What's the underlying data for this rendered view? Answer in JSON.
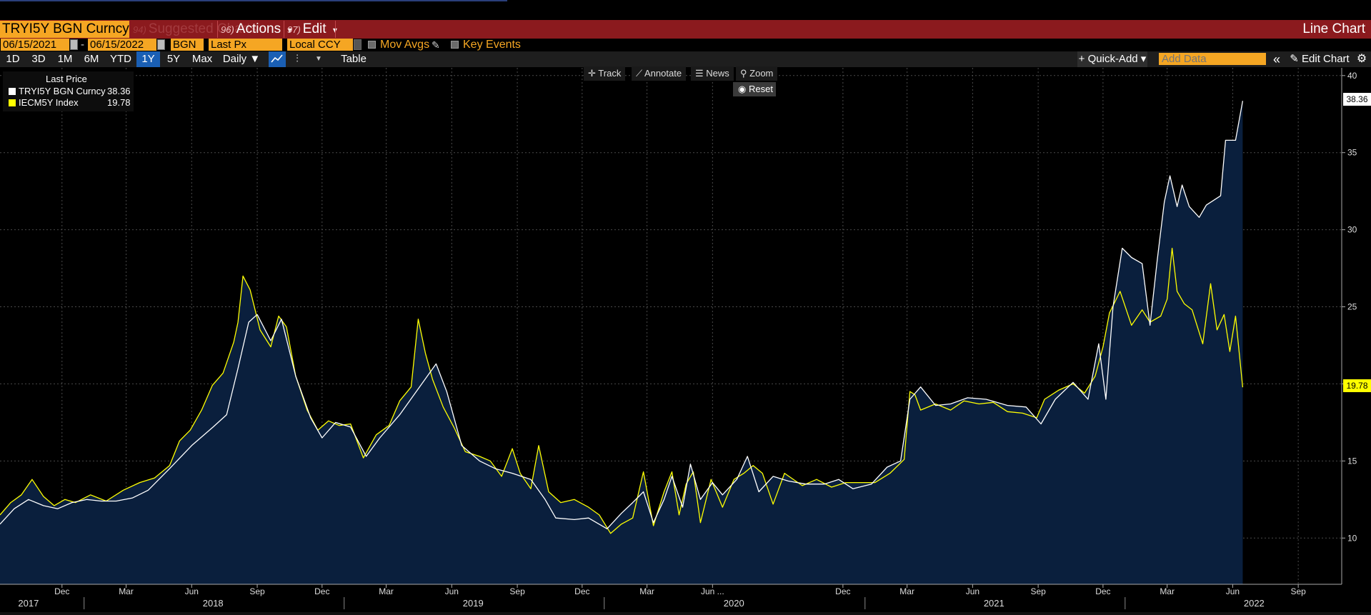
{
  "title_bar": {
    "ticker": "TRYI5Y BGN Curncy",
    "menus": [
      {
        "num": "94)",
        "label": "Suggested Charts"
      },
      {
        "num": "96)",
        "label": "Actions"
      },
      {
        "num": "97)",
        "label": "Edit"
      }
    ],
    "actions_arrow": "▾",
    "edit_arrow": "▾",
    "view_name": "Line Chart"
  },
  "settings_row": {
    "start_date": "06/15/2021",
    "date_separator": "-",
    "end_date": "06/15/2022",
    "source": "BGN",
    "field": "Last Px",
    "currency": "Local CCY",
    "mov_avgs": "Mov Avgs",
    "key_events": "Key Events"
  },
  "toolbar": {
    "ranges": [
      "1D",
      "3D",
      "1M",
      "6M",
      "YTD",
      "1Y",
      "5Y",
      "Max"
    ],
    "active_range": "1Y",
    "frequency": "Daily ▼",
    "table": "Table",
    "quick_add": "+ Quick-Add ▾",
    "add_data_placeholder": "Add Data",
    "collapse": "«",
    "edit_chart": "Edit Chart"
  },
  "chart_tools": {
    "track": "Track",
    "annotate": "Annotate",
    "news": "News",
    "zoom": "Zoom",
    "reset": "Reset"
  },
  "legend": {
    "header": "Last Price",
    "items": [
      {
        "name": "TRYI5Y BGN Curncy",
        "value": "38.36",
        "color": "#ffffff"
      },
      {
        "name": "IECM5Y Index",
        "value": "19.78",
        "color": "#ffff00"
      }
    ]
  },
  "chart_data": {
    "type": "line",
    "y_ticks": [
      10,
      15,
      20,
      25,
      30,
      35,
      40
    ],
    "ylim": [
      7,
      40.5
    ],
    "xlim": [
      "2017-09-05",
      "2022-11-01"
    ],
    "x_month_ticks": [
      {
        "label": "Dec",
        "date": "2017-12-01"
      },
      {
        "label": "Mar",
        "date": "2018-03-01"
      },
      {
        "label": "Jun",
        "date": "2018-06-01"
      },
      {
        "label": "Sep",
        "date": "2018-09-01"
      },
      {
        "label": "Dec",
        "date": "2018-12-01"
      },
      {
        "label": "Mar",
        "date": "2019-03-01"
      },
      {
        "label": "Jun",
        "date": "2019-06-01"
      },
      {
        "label": "Sep",
        "date": "2019-09-01"
      },
      {
        "label": "Dec",
        "date": "2019-12-01"
      },
      {
        "label": "Mar",
        "date": "2020-03-01"
      },
      {
        "label": "Jun ...",
        "date": "2020-06-01"
      },
      {
        "label": "Dec",
        "date": "2020-12-01"
      },
      {
        "label": "Mar",
        "date": "2021-03-01"
      },
      {
        "label": "Jun",
        "date": "2021-06-01"
      },
      {
        "label": "Sep",
        "date": "2021-09-01"
      },
      {
        "label": "Dec",
        "date": "2021-12-01"
      },
      {
        "label": "Mar",
        "date": "2022-03-01"
      },
      {
        "label": "Jun",
        "date": "2022-06-01"
      },
      {
        "label": "Sep",
        "date": "2022-09-01"
      }
    ],
    "x_year_labels": [
      {
        "label": "2017",
        "date": "2017-10-15"
      },
      {
        "label": "2018",
        "date": "2018-07-01"
      },
      {
        "label": "2019",
        "date": "2019-07-01"
      },
      {
        "label": "2020",
        "date": "2020-07-01"
      },
      {
        "label": "2021",
        "date": "2021-07-01"
      },
      {
        "label": "2022",
        "date": "2022-07-01"
      }
    ],
    "year_boundaries": [
      "2018-01-01",
      "2019-01-01",
      "2020-01-01",
      "2021-01-01",
      "2022-01-01"
    ],
    "series": [
      {
        "name": "TRYI5Y BGN Curncy",
        "color": "#ffffff",
        "last": 38.36,
        "points": [
          [
            "2017-09-05",
            10.9
          ],
          [
            "2017-09-25",
            11.9
          ],
          [
            "2017-10-15",
            12.5
          ],
          [
            "2017-11-05",
            12.1
          ],
          [
            "2017-11-25",
            11.9
          ],
          [
            "2017-12-15",
            12.3
          ],
          [
            "2018-01-05",
            12.5
          ],
          [
            "2018-01-25",
            12.4
          ],
          [
            "2018-02-15",
            12.4
          ],
          [
            "2018-03-10",
            12.6
          ],
          [
            "2018-04-01",
            13.1
          ],
          [
            "2018-05-01",
            14.5
          ],
          [
            "2018-06-01",
            16.0
          ],
          [
            "2018-07-01",
            17.2
          ],
          [
            "2018-07-20",
            18.0
          ],
          [
            "2018-08-05",
            21.0
          ],
          [
            "2018-08-20",
            24.0
          ],
          [
            "2018-09-01",
            24.5
          ],
          [
            "2018-09-20",
            22.8
          ],
          [
            "2018-10-05",
            24.2
          ],
          [
            "2018-10-25",
            20.5
          ],
          [
            "2018-11-15",
            17.8
          ],
          [
            "2018-12-01",
            16.5
          ],
          [
            "2018-12-20",
            17.5
          ],
          [
            "2019-01-10",
            17.2
          ],
          [
            "2019-02-01",
            15.3
          ],
          [
            "2019-02-20",
            16.5
          ],
          [
            "2019-03-20",
            18.0
          ],
          [
            "2019-04-20",
            20.0
          ],
          [
            "2019-05-10",
            21.3
          ],
          [
            "2019-05-25",
            19.5
          ],
          [
            "2019-06-15",
            16.0
          ],
          [
            "2019-07-10",
            15.0
          ],
          [
            "2019-08-01",
            14.5
          ],
          [
            "2019-08-25",
            14.2
          ],
          [
            "2019-09-20",
            13.8
          ],
          [
            "2019-10-10",
            12.5
          ],
          [
            "2019-10-25",
            11.3
          ],
          [
            "2019-11-20",
            11.2
          ],
          [
            "2019-12-10",
            11.3
          ],
          [
            "2020-01-05",
            10.6
          ],
          [
            "2020-01-25",
            11.6
          ],
          [
            "2020-02-10",
            12.3
          ],
          [
            "2020-02-25",
            13.0
          ],
          [
            "2020-03-10",
            11.0
          ],
          [
            "2020-03-25",
            12.5
          ],
          [
            "2020-04-05",
            14.0
          ],
          [
            "2020-04-20",
            12.0
          ],
          [
            "2020-05-01",
            14.8
          ],
          [
            "2020-05-15",
            12.5
          ],
          [
            "2020-06-01",
            13.6
          ],
          [
            "2020-06-15",
            12.8
          ],
          [
            "2020-07-05",
            13.8
          ],
          [
            "2020-07-20",
            15.3
          ],
          [
            "2020-08-05",
            13.0
          ],
          [
            "2020-08-25",
            14.0
          ],
          [
            "2020-09-15",
            13.7
          ],
          [
            "2020-10-10",
            13.5
          ],
          [
            "2020-11-05",
            13.5
          ],
          [
            "2020-11-25",
            13.8
          ],
          [
            "2020-12-15",
            13.2
          ],
          [
            "2021-01-10",
            13.5
          ],
          [
            "2021-02-01",
            14.6
          ],
          [
            "2021-02-20",
            15.0
          ],
          [
            "2021-03-05",
            19.0
          ],
          [
            "2021-03-20",
            19.8
          ],
          [
            "2021-04-10",
            18.6
          ],
          [
            "2021-05-01",
            18.7
          ],
          [
            "2021-05-25",
            19.1
          ],
          [
            "2021-06-20",
            19.0
          ],
          [
            "2021-07-20",
            18.6
          ],
          [
            "2021-08-15",
            18.5
          ],
          [
            "2021-09-05",
            17.4
          ],
          [
            "2021-09-25",
            19.0
          ],
          [
            "2021-10-20",
            20.1
          ],
          [
            "2021-11-10",
            19.0
          ],
          [
            "2021-11-25",
            22.6
          ],
          [
            "2021-12-05",
            19.0
          ],
          [
            "2021-12-15",
            25.0
          ],
          [
            "2021-12-28",
            28.8
          ],
          [
            "2022-01-10",
            28.2
          ],
          [
            "2022-01-25",
            27.8
          ],
          [
            "2022-02-05",
            23.8
          ],
          [
            "2022-02-15",
            28.0
          ],
          [
            "2022-02-25",
            31.8
          ],
          [
            "2022-03-05",
            33.5
          ],
          [
            "2022-03-15",
            31.5
          ],
          [
            "2022-03-22",
            32.9
          ],
          [
            "2022-04-01",
            31.5
          ],
          [
            "2022-04-15",
            30.8
          ],
          [
            "2022-04-25",
            31.6
          ],
          [
            "2022-05-05",
            31.9
          ],
          [
            "2022-05-15",
            32.2
          ],
          [
            "2022-05-22",
            35.8
          ],
          [
            "2022-06-05",
            35.8
          ],
          [
            "2022-06-15",
            38.36
          ]
        ]
      },
      {
        "name": "IECM5Y Index",
        "color": "#ffff00",
        "last": 19.78,
        "points": [
          [
            "2017-09-05",
            11.5
          ],
          [
            "2017-09-20",
            12.3
          ],
          [
            "2017-10-05",
            12.8
          ],
          [
            "2017-10-20",
            13.8
          ],
          [
            "2017-11-05",
            12.7
          ],
          [
            "2017-11-20",
            12.1
          ],
          [
            "2017-12-05",
            12.5
          ],
          [
            "2017-12-20",
            12.3
          ],
          [
            "2018-01-10",
            12.8
          ],
          [
            "2018-02-01",
            12.4
          ],
          [
            "2018-02-25",
            13.1
          ],
          [
            "2018-03-20",
            13.6
          ],
          [
            "2018-04-10",
            13.9
          ],
          [
            "2018-05-01",
            14.7
          ],
          [
            "2018-05-15",
            16.3
          ],
          [
            "2018-05-30",
            17.0
          ],
          [
            "2018-06-15",
            18.3
          ],
          [
            "2018-06-30",
            19.9
          ],
          [
            "2018-07-15",
            20.7
          ],
          [
            "2018-07-30",
            22.7
          ],
          [
            "2018-08-05",
            24.0
          ],
          [
            "2018-08-12",
            27.0
          ],
          [
            "2018-08-22",
            26.1
          ],
          [
            "2018-09-05",
            23.5
          ],
          [
            "2018-09-20",
            22.4
          ],
          [
            "2018-10-01",
            24.4
          ],
          [
            "2018-10-12",
            23.7
          ],
          [
            "2018-10-25",
            20.5
          ],
          [
            "2018-11-10",
            18.3
          ],
          [
            "2018-11-25",
            17.0
          ],
          [
            "2018-12-10",
            17.6
          ],
          [
            "2018-12-25",
            17.3
          ],
          [
            "2019-01-10",
            17.4
          ],
          [
            "2019-01-28",
            15.2
          ],
          [
            "2019-02-15",
            16.7
          ],
          [
            "2019-03-05",
            17.3
          ],
          [
            "2019-03-20",
            18.9
          ],
          [
            "2019-04-05",
            19.8
          ],
          [
            "2019-04-15",
            24.2
          ],
          [
            "2019-04-25",
            22.0
          ],
          [
            "2019-05-05",
            20.3
          ],
          [
            "2019-05-20",
            18.5
          ],
          [
            "2019-06-05",
            17.1
          ],
          [
            "2019-06-20",
            15.6
          ],
          [
            "2019-07-10",
            15.3
          ],
          [
            "2019-07-25",
            15.0
          ],
          [
            "2019-08-10",
            14.0
          ],
          [
            "2019-08-25",
            15.8
          ],
          [
            "2019-09-05",
            14.2
          ],
          [
            "2019-09-20",
            13.2
          ],
          [
            "2019-10-01",
            16.0
          ],
          [
            "2019-10-15",
            13.0
          ],
          [
            "2019-11-01",
            12.3
          ],
          [
            "2019-11-20",
            12.5
          ],
          [
            "2019-12-10",
            12.0
          ],
          [
            "2019-12-25",
            11.5
          ],
          [
            "2020-01-10",
            10.3
          ],
          [
            "2020-01-25",
            10.9
          ],
          [
            "2020-02-10",
            11.3
          ],
          [
            "2020-02-25",
            14.3
          ],
          [
            "2020-03-10",
            10.8
          ],
          [
            "2020-03-25",
            13.0
          ],
          [
            "2020-04-05",
            14.3
          ],
          [
            "2020-04-15",
            11.5
          ],
          [
            "2020-04-25",
            13.5
          ],
          [
            "2020-05-05",
            14.3
          ],
          [
            "2020-05-15",
            11.0
          ],
          [
            "2020-05-30",
            13.8
          ],
          [
            "2020-06-15",
            12.0
          ],
          [
            "2020-07-01",
            13.8
          ],
          [
            "2020-07-15",
            14.2
          ],
          [
            "2020-07-28",
            14.7
          ],
          [
            "2020-08-10",
            14.2
          ],
          [
            "2020-08-25",
            12.2
          ],
          [
            "2020-09-10",
            14.2
          ],
          [
            "2020-10-05",
            13.4
          ],
          [
            "2020-10-25",
            13.8
          ],
          [
            "2020-11-15",
            13.3
          ],
          [
            "2020-12-05",
            13.6
          ],
          [
            "2020-12-25",
            13.6
          ],
          [
            "2021-01-15",
            13.6
          ],
          [
            "2021-02-05",
            14.2
          ],
          [
            "2021-02-25",
            15.1
          ],
          [
            "2021-03-05",
            19.5
          ],
          [
            "2021-03-12",
            19.3
          ],
          [
            "2021-03-20",
            18.3
          ],
          [
            "2021-04-10",
            18.7
          ],
          [
            "2021-05-01",
            18.3
          ],
          [
            "2021-05-20",
            18.9
          ],
          [
            "2021-06-10",
            18.7
          ],
          [
            "2021-06-30",
            18.8
          ],
          [
            "2021-07-20",
            18.2
          ],
          [
            "2021-08-10",
            18.1
          ],
          [
            "2021-08-30",
            17.8
          ],
          [
            "2021-09-10",
            19.0
          ],
          [
            "2021-09-30",
            19.6
          ],
          [
            "2021-10-20",
            20.0
          ],
          [
            "2021-11-05",
            19.4
          ],
          [
            "2021-11-20",
            20.5
          ],
          [
            "2021-12-01",
            22.4
          ],
          [
            "2021-12-10",
            24.6
          ],
          [
            "2021-12-25",
            26.0
          ],
          [
            "2022-01-10",
            23.8
          ],
          [
            "2022-01-25",
            24.8
          ],
          [
            "2022-02-05",
            24.0
          ],
          [
            "2022-02-20",
            24.4
          ],
          [
            "2022-03-01",
            25.5
          ],
          [
            "2022-03-08",
            28.8
          ],
          [
            "2022-03-15",
            26.0
          ],
          [
            "2022-03-25",
            25.2
          ],
          [
            "2022-04-05",
            24.8
          ],
          [
            "2022-04-20",
            22.6
          ],
          [
            "2022-05-01",
            26.5
          ],
          [
            "2022-05-10",
            23.5
          ],
          [
            "2022-05-20",
            24.5
          ],
          [
            "2022-05-28",
            22.1
          ],
          [
            "2022-06-05",
            24.4
          ],
          [
            "2022-06-15",
            19.78
          ]
        ]
      }
    ]
  }
}
